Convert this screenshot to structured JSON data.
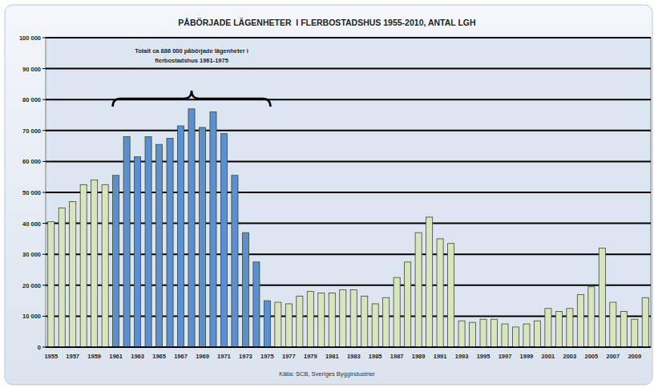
{
  "chart_data": {
    "type": "bar",
    "title": "PÅBÖRJADE LÄGENHETER  I FLERBOSTADSHUS 1955-2010, ANTAL LGH",
    "annotation": [
      "Totalt ca 886 000 påbörjade lägenheter i",
      "flerbostadshus 1961-1975"
    ],
    "source": "Källa: SCB, Sveriges Byggindustrier",
    "categories": [
      "1955",
      null,
      "1957",
      null,
      "1959",
      null,
      "1961",
      null,
      "1963",
      null,
      "1965",
      null,
      "1967",
      null,
      "1969",
      null,
      "1971",
      null,
      "1973",
      null,
      "1975",
      null,
      "1977",
      null,
      "1979",
      null,
      "1981",
      null,
      "1983",
      null,
      "1985",
      null,
      "1987",
      null,
      "1989",
      null,
      "1991",
      null,
      "1993",
      null,
      "1995",
      null,
      "1997",
      null,
      "1999",
      null,
      "2001",
      null,
      "2003",
      null,
      "2005",
      null,
      "2007",
      null,
      "2009",
      null
    ],
    "values": [
      40500,
      45000,
      47000,
      52500,
      54000,
      52500,
      55500,
      68000,
      61500,
      68000,
      65500,
      67500,
      71500,
      77000,
      71000,
      76000,
      69000,
      55500,
      37000,
      27500,
      15000,
      14500,
      14000,
      16500,
      18000,
      17500,
      17500,
      18500,
      18500,
      16500,
      14000,
      16000,
      22500,
      27500,
      37000,
      42000,
      35000,
      33500,
      8500,
      8000,
      9000,
      9000,
      7500,
      6500,
      7500,
      8500,
      12500,
      11500,
      12500,
      17000,
      19500,
      32000,
      14500,
      11500,
      9000,
      16000
    ],
    "colors": [
      "#d7e4bd",
      "#d7e4bd",
      "#d7e4bd",
      "#d7e4bd",
      "#d7e4bd",
      "#d7e4bd",
      "#5b8fd0",
      "#5b8fd0",
      "#5b8fd0",
      "#5b8fd0",
      "#5b8fd0",
      "#5b8fd0",
      "#5b8fd0",
      "#5b8fd0",
      "#5b8fd0",
      "#5b8fd0",
      "#5b8fd0",
      "#5b8fd0",
      "#5b8fd0",
      "#5b8fd0",
      "#5b8fd0",
      "#d7e4bd",
      "#d7e4bd",
      "#d7e4bd",
      "#d7e4bd",
      "#d7e4bd",
      "#d7e4bd",
      "#d7e4bd",
      "#d7e4bd",
      "#d7e4bd",
      "#d7e4bd",
      "#d7e4bd",
      "#d7e4bd",
      "#d7e4bd",
      "#d7e4bd",
      "#d7e4bd",
      "#d7e4bd",
      "#d7e4bd",
      "#d7e4bd",
      "#d7e4bd",
      "#d7e4bd",
      "#d7e4bd",
      "#d7e4bd",
      "#d7e4bd",
      "#d7e4bd",
      "#d7e4bd",
      "#d7e4bd",
      "#d7e4bd",
      "#d7e4bd",
      "#d7e4bd",
      "#d7e4bd",
      "#d7e4bd",
      "#d7e4bd",
      "#d7e4bd",
      "#d7e4bd",
      "#d7e4bd"
    ],
    "ylim": [
      0,
      100000
    ],
    "yticks": [
      0,
      {
        "value": 10000,
        "label": "10 000"
      },
      {
        "value": 20000,
        "label": "20 000"
      },
      {
        "value": 30000,
        "label": "30 000"
      },
      {
        "value": 40000,
        "label": "40 000"
      },
      {
        "value": 50000,
        "label": "50 000"
      },
      {
        "value": 60000,
        "label": "60 000"
      },
      {
        "value": 70000,
        "label": "70 000"
      },
      {
        "value": 80000,
        "label": "80 000"
      },
      {
        "value": 90000,
        "label": "90 000"
      },
      {
        "value": 100000,
        "label": "100 000"
      }
    ],
    "grid": true
  }
}
